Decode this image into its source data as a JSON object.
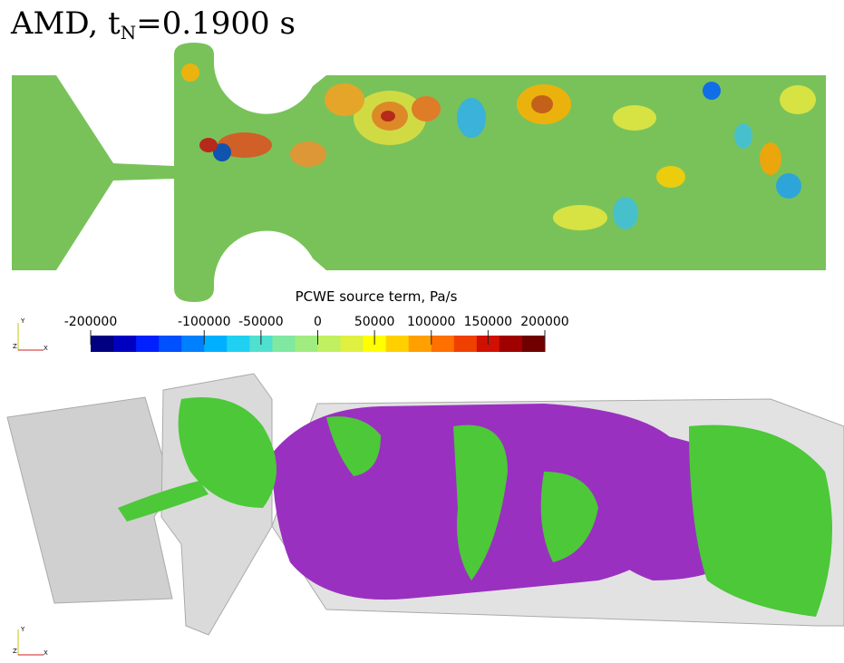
{
  "title": {
    "prefix": "AMD, t",
    "subscript": "N",
    "suffix": "=0.1900 s"
  },
  "colorbar": {
    "label": "PCWE source term, Pa/s",
    "range": [
      -200000,
      200000
    ],
    "ticks": [
      -200000,
      -100000,
      -50000,
      0,
      50000,
      100000,
      150000,
      200000
    ],
    "colormap": [
      "#000080",
      "#0000c0",
      "#0020ff",
      "#0050ff",
      "#0080ff",
      "#00b0ff",
      "#20d0f0",
      "#50e0d0",
      "#80e8a0",
      "#a0ec80",
      "#c0f060",
      "#e0f040",
      "#ffff00",
      "#ffd000",
      "#ffa000",
      "#ff7000",
      "#f04000",
      "#d01000",
      "#a00000",
      "#700000"
    ]
  },
  "axes_triad": {
    "labels": [
      "Y",
      "Z",
      "X"
    ]
  }
}
